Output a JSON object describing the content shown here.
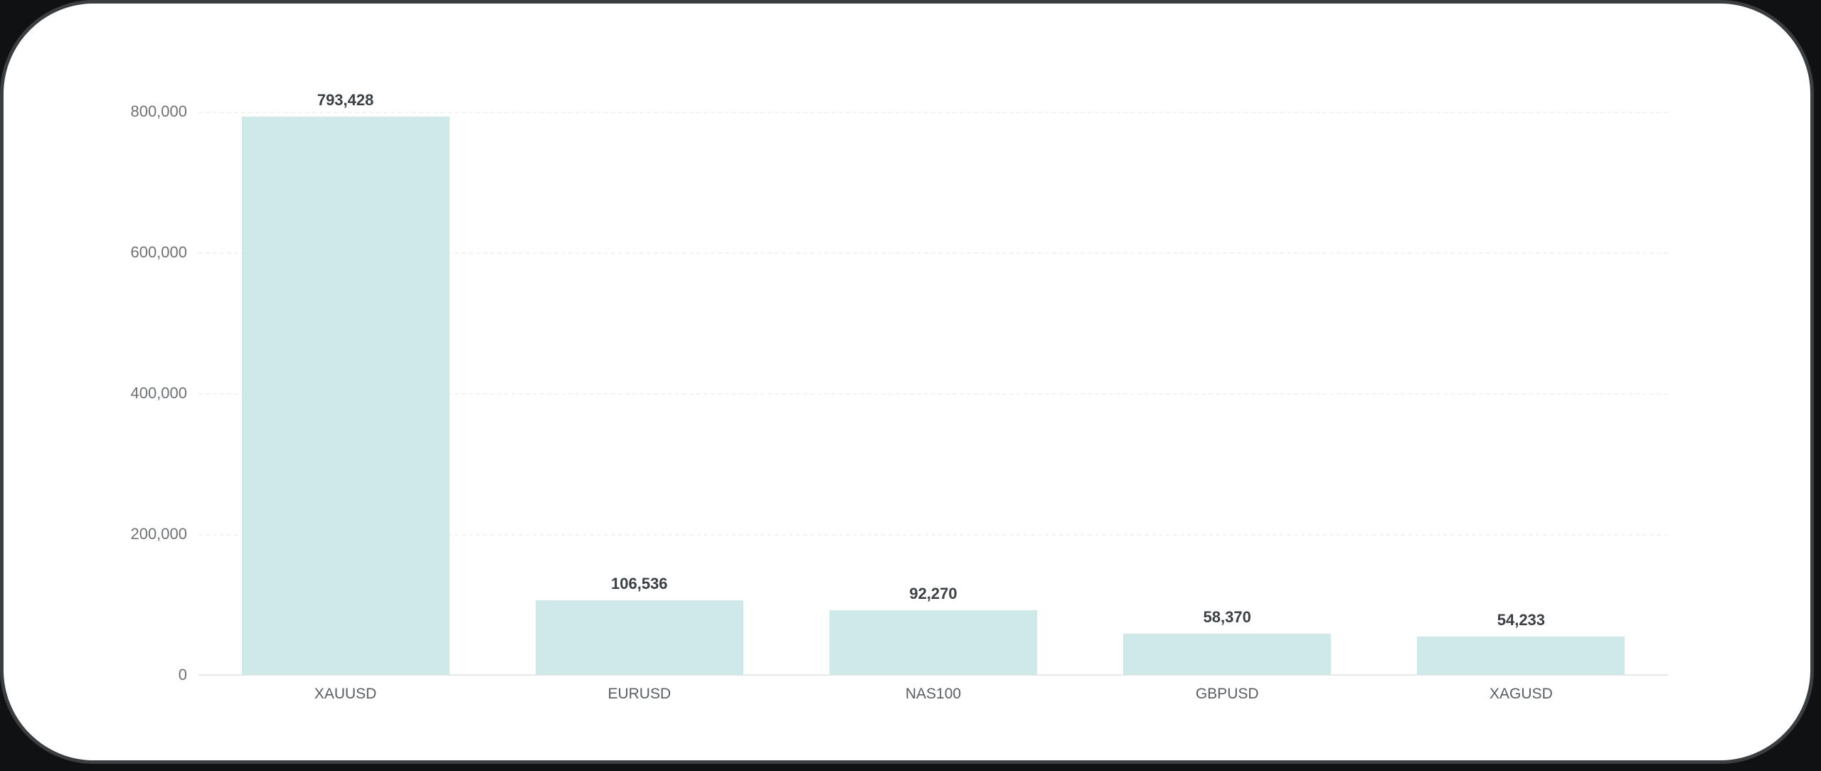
{
  "window": {
    "background_color": "#101113",
    "card_color": "#ffffff",
    "card_border_color": "#3b3e41"
  },
  "chart_data": {
    "type": "bar",
    "title": "",
    "xlabel": "",
    "ylabel": "",
    "categories": [
      "XAUUSD",
      "EURUSD",
      "NAS100",
      "GBPUSD",
      "XAGUSD"
    ],
    "values": [
      793428,
      106536,
      92270,
      58370,
      54233
    ],
    "value_labels": [
      "793,428",
      "106,536",
      "92,270",
      "58,370",
      "54,233"
    ],
    "ylim": [
      0,
      800000
    ],
    "yticks": [
      0,
      200000,
      400000,
      600000,
      800000
    ],
    "ytick_labels": [
      "0",
      "200,000",
      "400,000",
      "600,000",
      "800,000"
    ],
    "grid": true,
    "grid_style": "dashed-light",
    "legend": false,
    "bar_color": "#cfe9e9",
    "value_label_color": "#3b4045",
    "tick_label_color": "#6e7275",
    "category_label_color": "#595e62"
  }
}
